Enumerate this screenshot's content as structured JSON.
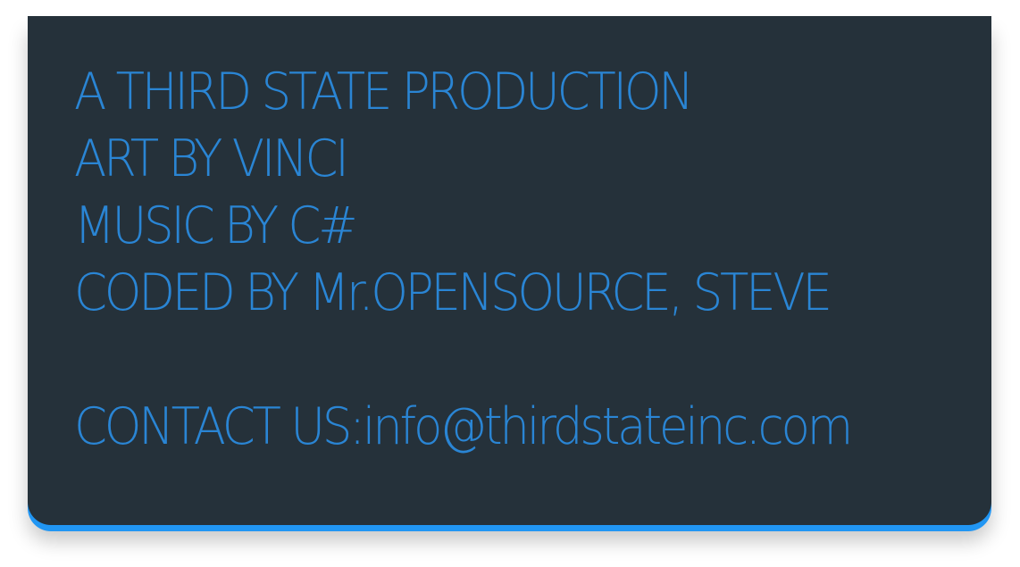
{
  "credits": {
    "lines": [
      "A THIRD STATE PRODUCTION",
      "ART BY VINCI",
      "MUSIC BY C#",
      "CODED BY Mr.OPENSOURCE, STEVE"
    ],
    "contact": "CONTACT US:info@thirdstateinc.com"
  },
  "colors": {
    "panel_background": "#25313a",
    "text": "#2a85d4",
    "accent_edge": "#2196f3"
  }
}
